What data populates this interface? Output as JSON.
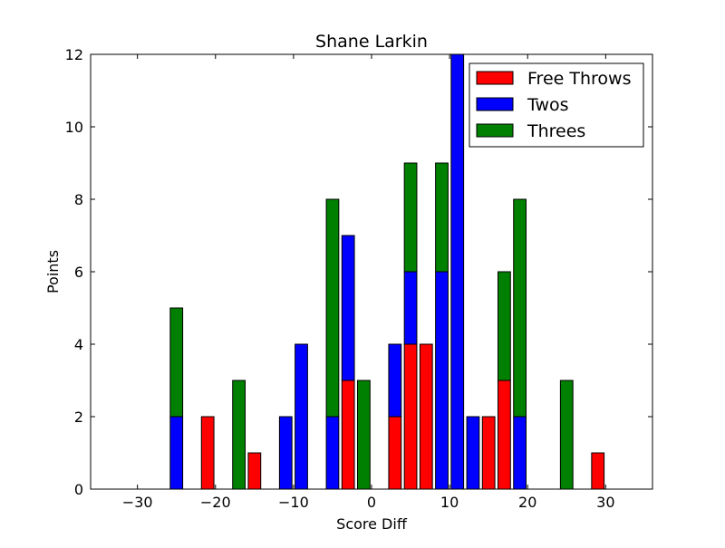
{
  "chart_data": {
    "type": "bar",
    "stacked": true,
    "title": "Shane Larkin",
    "xlabel": "Score Diff",
    "ylabel": "Points",
    "xlim": [
      -36,
      36
    ],
    "ylim": [
      0,
      12
    ],
    "grid": false,
    "legend_position": "top-right",
    "x_ticks": [
      -30,
      -20,
      -10,
      0,
      10,
      20,
      30
    ],
    "y_ticks": [
      0,
      2,
      4,
      6,
      8,
      10,
      12
    ],
    "x_tick_labels": [
      "−30",
      "−20",
      "−10",
      "0",
      "10",
      "20",
      "30"
    ],
    "y_tick_labels": [
      "0",
      "2",
      "4",
      "6",
      "8",
      "10",
      "12"
    ],
    "x": [
      -35,
      -33,
      -31,
      -29,
      -27,
      -25,
      -23,
      -21,
      -19,
      -17,
      -15,
      -13,
      -11,
      -9,
      -7,
      -5,
      -3,
      -1,
      1,
      3,
      5,
      7,
      9,
      11,
      13,
      15,
      17,
      19,
      21,
      23,
      25,
      27,
      29,
      31,
      33,
      35
    ],
    "series": [
      {
        "name": "Free Throws",
        "color": "#ff0000",
        "values": [
          0,
          0,
          0,
          0,
          0,
          0,
          0,
          2,
          0,
          0,
          1,
          0,
          0,
          0,
          0,
          0,
          3,
          0,
          0,
          2,
          4,
          4,
          0,
          0,
          0,
          2,
          3,
          0,
          0,
          0,
          0,
          0,
          1,
          0,
          0,
          0
        ]
      },
      {
        "name": "Twos",
        "color": "#0000ff",
        "values": [
          0,
          0,
          0,
          0,
          0,
          2,
          0,
          0,
          0,
          0,
          0,
          0,
          2,
          4,
          0,
          2,
          4,
          0,
          0,
          2,
          2,
          0,
          6,
          12,
          2,
          0,
          0,
          2,
          0,
          0,
          0,
          0,
          0,
          0,
          0,
          0
        ]
      },
      {
        "name": "Threes",
        "color": "#008000",
        "values": [
          0,
          0,
          0,
          0,
          0,
          3,
          0,
          0,
          0,
          3,
          0,
          0,
          0,
          0,
          0,
          6,
          0,
          3,
          0,
          0,
          3,
          0,
          3,
          0,
          0,
          0,
          3,
          6,
          0,
          0,
          3,
          0,
          0,
          0,
          0,
          0
        ]
      }
    ]
  }
}
